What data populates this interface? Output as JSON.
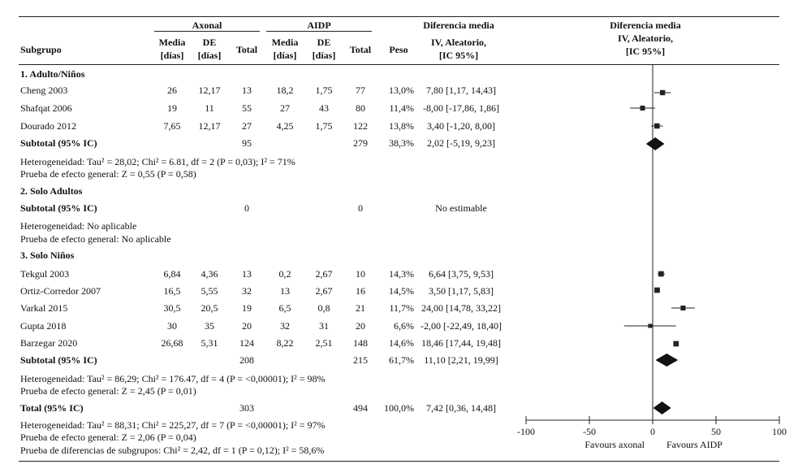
{
  "header": {
    "group_axonal": "Axonal",
    "group_aidp": "AIDP",
    "subgroup": "Subgrupo",
    "media": "Media",
    "dias": "[días]",
    "de": "DE",
    "total": "Total",
    "peso": "Peso",
    "diff_col_1": "Diferencia media",
    "diff_col_2": "IV, Aleatorio,",
    "diff_col_3": "[IC 95%]",
    "plot_col_1": "Diferencia media",
    "plot_col_2": "IV, Aleatorio,",
    "plot_col_3": "[IC 95%]"
  },
  "sections": {
    "s1_title": "1. Adulto/Niños",
    "s1_het": "Heterogeneidad: Tau² = 28,02; Chi² = 6.81, df = 2 (P = 0,03); I² = 71%",
    "s1_eff": "Prueba de efecto general: Z = 0,55 (P = 0,58)",
    "s2_title": "2. Solo Adultos",
    "s2_het": "Heterogeneidad: No aplicable",
    "s2_eff": "Prueba de efecto general: No aplicable",
    "s3_title": "3. Solo Niños",
    "s3_het": "Heterogeneidad: Tau² = 86,29; Chi² = 176.47, df = 4 (P = <0,00001); I² = 98%",
    "s3_eff": "Prueba de efecto general: Z = 2,45 (P = 0,01)",
    "tot_het": "Heterogeneidad: Tau² = 88,31; Chi² = 225,27, df = 7 (P = <0,00001); I² = 97%",
    "tot_eff": "Prueba de efecto general: Z = 2,06 (P = 0,04)",
    "tot_sub": "Prueba de diferencias de subgrupos: Chi² = 2,42, df = 1 (P = 0,12); I² = 58,6%"
  },
  "rows": [
    {
      "study": "Cheng 2003",
      "m1": "26",
      "sd1": "12,17",
      "n1": "13",
      "m2": "18,2",
      "sd2": "1,75",
      "n2": "77",
      "w": "13,0%",
      "ci": "7,80 [1,17, 14,43]"
    },
    {
      "study": "Shafqat 2006",
      "m1": "19",
      "sd1": "11",
      "n1": "55",
      "m2": "27",
      "sd2": "43",
      "n2": "80",
      "w": "11,4%",
      "ci": "-8,00 [-17,86, 1,86]"
    },
    {
      "study": "Dourado 2012",
      "m1": "7,65",
      "sd1": "12,17",
      "n1": "27",
      "m2": "4,25",
      "sd2": "1,75",
      "n2": "122",
      "w": "13,8%",
      "ci": "3,40 [-1,20, 8,00]"
    },
    {
      "study": "Subtotal (95% IC)",
      "m1": "",
      "sd1": "",
      "n1": "95",
      "m2": "",
      "sd2": "",
      "n2": "279",
      "w": "38,3%",
      "ci": "2,02 [-5,19, 9,23]"
    },
    {
      "study": "Subtotal (95% IC)",
      "m1": "",
      "sd1": "",
      "n1": "0",
      "m2": "",
      "sd2": "",
      "n2": "0",
      "w": "",
      "ci": "No estimable"
    },
    {
      "study": "Tekgul 2003",
      "m1": "6,84",
      "sd1": "4,36",
      "n1": "13",
      "m2": "0,2",
      "sd2": "2,67",
      "n2": "10",
      "w": "14,3%",
      "ci": "6,64 [3,75, 9,53]"
    },
    {
      "study": "Ortiz-Corredor 2007",
      "m1": "16,5",
      "sd1": "5,55",
      "n1": "32",
      "m2": "13",
      "sd2": "2,67",
      "n2": "16",
      "w": "14,5%",
      "ci": "3,50 [1,17, 5,83]"
    },
    {
      "study": "Varkal 2015",
      "m1": "30,5",
      "sd1": "20,5",
      "n1": "19",
      "m2": "6,5",
      "sd2": "0,8",
      "n2": "21",
      "w": "11,7%",
      "ci": "24,00 [14,78, 33,22]"
    },
    {
      "study": "Gupta 2018",
      "m1": "30",
      "sd1": "35",
      "n1": "20",
      "m2": "32",
      "sd2": "31",
      "n2": "20",
      "w": "6,6%",
      "ci": "-2,00 [-22,49, 18,40]"
    },
    {
      "study": "Barzegar 2020",
      "m1": "26,68",
      "sd1": "5,31",
      "n1": "124",
      "m2": "8,22",
      "sd2": "2,51",
      "n2": "148",
      "w": "14,6%",
      "ci": "18,46 [17,44, 19,48]"
    },
    {
      "study": "Subtotal (95% IC)",
      "m1": "",
      "sd1": "",
      "n1": "208",
      "m2": "",
      "sd2": "",
      "n2": "215",
      "w": "61,7%",
      "ci": "11,10 [2,21, 19,99]"
    },
    {
      "study": "Total (95% IC)",
      "m1": "",
      "sd1": "",
      "n1": "303",
      "m2": "",
      "sd2": "",
      "n2": "494",
      "w": "100,0%",
      "ci": "7,42 [0,36, 14,48]"
    }
  ],
  "chart_data": {
    "type": "forest",
    "xlim": [
      -100,
      100
    ],
    "x_ticks": [
      "-100",
      "-50",
      "0",
      "50",
      "100"
    ],
    "x_tick_values": [
      -100,
      -50,
      0,
      50,
      100
    ],
    "left_label": "Favours axonal",
    "right_label": "Favours AIDP",
    "studies": [
      {
        "name": "Cheng 2003",
        "est": 7.8,
        "lo": 1.17,
        "hi": 14.43,
        "weight": 13.0
      },
      {
        "name": "Shafqat 2006",
        "est": -8.0,
        "lo": -17.86,
        "hi": 1.86,
        "weight": 11.4
      },
      {
        "name": "Dourado 2012",
        "est": 3.4,
        "lo": -1.2,
        "hi": 8.0,
        "weight": 13.8
      },
      {
        "name": "Tekgul 2003",
        "est": 6.64,
        "lo": 3.75,
        "hi": 9.53,
        "weight": 14.3
      },
      {
        "name": "Ortiz-Corredor 2007",
        "est": 3.5,
        "lo": 1.17,
        "hi": 5.83,
        "weight": 14.5
      },
      {
        "name": "Varkal 2015",
        "est": 24.0,
        "lo": 14.78,
        "hi": 33.22,
        "weight": 11.7
      },
      {
        "name": "Gupta 2018",
        "est": -2.0,
        "lo": -22.49,
        "hi": 18.4,
        "weight": 6.6
      },
      {
        "name": "Barzegar 2020",
        "est": 18.46,
        "lo": 17.44,
        "hi": 19.48,
        "weight": 14.6
      }
    ],
    "summaries": [
      {
        "name": "Subtotal 1",
        "est": 2.02,
        "lo": -5.19,
        "hi": 9.23
      },
      {
        "name": "Subtotal 3",
        "est": 11.1,
        "lo": 2.21,
        "hi": 19.99
      },
      {
        "name": "Total",
        "est": 7.42,
        "lo": 0.36,
        "hi": 14.48
      }
    ]
  }
}
